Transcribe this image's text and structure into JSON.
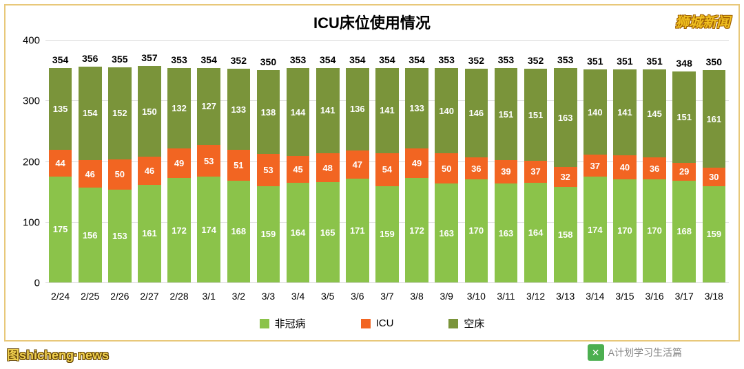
{
  "title": "ICU床位使用情况",
  "chart": {
    "type": "stacked-bar",
    "ylim": [
      0,
      400
    ],
    "ytick_step": 100,
    "yticks": [
      0,
      100,
      200,
      300,
      400
    ],
    "background_color": "#ffffff",
    "border_color": "#e8c87a",
    "grid_color": "#d8d8d8",
    "title_fontsize": 22,
    "axis_fontsize": 15,
    "data_label_fontsize": 13,
    "data_label_color": "#ffffff",
    "total_label_color": "#000000",
    "bar_width_ratio": 0.78,
    "categories": [
      "2/24",
      "2/25",
      "2/26",
      "2/27",
      "2/28",
      "3/1",
      "3/2",
      "3/3",
      "3/4",
      "3/5",
      "3/6",
      "3/7",
      "3/8",
      "3/9",
      "3/10",
      "3/11",
      "3/12",
      "3/13",
      "3/14",
      "3/15",
      "3/16",
      "3/17",
      "3/18"
    ],
    "series": [
      {
        "name": "非冠病",
        "color": "#8bc34a",
        "values": [
          175,
          156,
          153,
          161,
          172,
          174,
          168,
          159,
          164,
          165,
          171,
          159,
          172,
          163,
          170,
          163,
          164,
          158,
          174,
          170,
          170,
          168,
          159
        ]
      },
      {
        "name": "ICU",
        "color": "#f26522",
        "values": [
          44,
          46,
          50,
          46,
          49,
          53,
          51,
          53,
          45,
          48,
          47,
          54,
          49,
          50,
          36,
          39,
          37,
          32,
          37,
          40,
          36,
          29,
          30
        ]
      },
      {
        "name": "空床",
        "color": "#7a943a",
        "values": [
          135,
          154,
          152,
          150,
          132,
          127,
          133,
          138,
          144,
          141,
          136,
          141,
          133,
          140,
          146,
          151,
          151,
          163,
          140,
          141,
          145,
          151,
          161
        ]
      }
    ],
    "totals": [
      354,
      356,
      355,
      357,
      353,
      354,
      352,
      350,
      353,
      354,
      354,
      354,
      354,
      353,
      352,
      353,
      352,
      353,
      351,
      351,
      351,
      348,
      350
    ]
  },
  "legend": {
    "items": [
      {
        "label": "非冠病",
        "color": "#8bc34a"
      },
      {
        "label": "ICU",
        "color": "#f26522"
      },
      {
        "label": "空床",
        "color": "#7a943a"
      }
    ]
  },
  "watermarks": {
    "top_right": "狮城新闻",
    "bottom_right": "A计划学习生活篇",
    "bottom_left": "图shicheng·news",
    "wechat_glyph": "✕"
  }
}
